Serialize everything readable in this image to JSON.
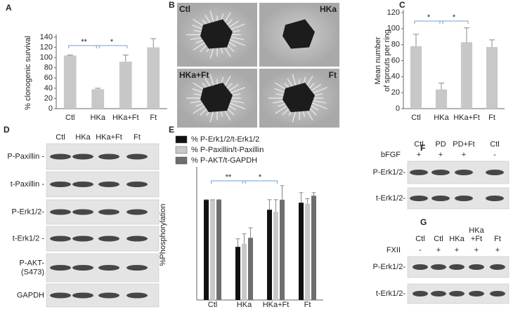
{
  "chart_data": [
    {
      "type": "bar",
      "panel_label": "A",
      "y_label": "% clonogenic survival",
      "categories": [
        "Ctl",
        "HKa",
        "HKa+Ft",
        "Ft"
      ],
      "values": [
        104,
        38,
        92,
        120
      ],
      "errors": [
        1,
        2,
        13,
        17
      ],
      "color": "#c8c8c8",
      "ylim": [
        0,
        140
      ],
      "yticks": [
        0,
        20,
        40,
        60,
        80,
        100,
        120,
        140
      ],
      "significance": [
        {
          "label": "**",
          "between": [
            "Ctl",
            "HKa"
          ]
        },
        {
          "label": "*",
          "between": [
            "HKa",
            "HKa+Ft"
          ]
        }
      ]
    },
    {
      "type": "bar",
      "panel_label": "C",
      "y_label_lines": [
        "Mean number",
        "of sprouts per ring"
      ],
      "categories": [
        "Ctl",
        "HKa",
        "HKa+Ft",
        "Ft"
      ],
      "values": [
        78,
        24,
        83,
        77
      ],
      "errors": [
        15,
        8,
        18,
        9
      ],
      "color": "#c8c8c8",
      "ylim": [
        0,
        120
      ],
      "yticks": [
        0,
        20,
        40,
        60,
        80,
        100,
        120
      ],
      "significance": [
        {
          "label": "*",
          "between": [
            "Ctl",
            "HKa"
          ]
        },
        {
          "label": "*",
          "between": [
            "HKa",
            "HKa+Ft"
          ]
        }
      ]
    },
    {
      "type": "grouped_bar",
      "panel_label": "E",
      "y_label": "%Phosphorylation",
      "categories": [
        "Ctl",
        "HKa",
        "HKa+Ft",
        "Ft"
      ],
      "ylim": [
        0,
        130
      ],
      "series": [
        {
          "name": "% P-Erk1/2/t-Erk1/2",
          "color": "#111111",
          "values": [
            100,
            53,
            90,
            97
          ],
          "errors": [
            0,
            8,
            10,
            10
          ]
        },
        {
          "name": "% P-Paxillin/t-Paxillin",
          "color": "#c8c8c8",
          "values": [
            100,
            56,
            88,
            96
          ],
          "errors": [
            0,
            10,
            12,
            5
          ]
        },
        {
          "name": "% P-AKT/t-GAPDH",
          "color": "#6e6e6e",
          "values": [
            100,
            62,
            100,
            104
          ],
          "errors": [
            0,
            10,
            14,
            3
          ]
        }
      ],
      "significance": [
        {
          "label": "**",
          "between": [
            "Ctl",
            "HKa"
          ]
        },
        {
          "label": "*",
          "between": [
            "HKa",
            "HKa+Ft"
          ]
        }
      ]
    }
  ],
  "micrographs": {
    "panel_label": "B",
    "labels": [
      "Ctl",
      "HKa",
      "HKa+Ft",
      "Ft"
    ]
  },
  "blot_D": {
    "panel_label": "D",
    "lanes": [
      [
        "Ctl"
      ],
      [
        "HKa"
      ],
      [
        "HKa+Ft"
      ],
      [
        "Ft"
      ]
    ],
    "rows": [
      [
        "P-Paxillin -"
      ],
      [
        "t-Paxillin -"
      ],
      [
        "P-Erk1/2-"
      ],
      [
        "t-Erk1/2 -"
      ],
      [
        "P-AKT-",
        "(S473)"
      ],
      [
        "GAPDH"
      ]
    ]
  },
  "blot_F": {
    "panel_label": "F",
    "lanes": [
      [
        "Ctl"
      ],
      [
        "PD"
      ],
      [
        "PD+Ft"
      ],
      [
        "Ctl"
      ]
    ],
    "treatment_label": "bFGF",
    "treatment": [
      "+",
      "+",
      "+",
      "-"
    ],
    "rows": [
      [
        "P-Erk1/2-"
      ],
      [
        "t-Erk1/2-"
      ]
    ]
  },
  "blot_G": {
    "panel_label": "G",
    "lanes": [
      [
        "Ctl"
      ],
      [
        "Ctl"
      ],
      [
        "HKa"
      ],
      [
        "HKa",
        "+Ft"
      ],
      [
        "Ft"
      ]
    ],
    "treatment_label": "FXII",
    "treatment": [
      "-",
      "+",
      "+",
      "+",
      "+"
    ],
    "rows": [
      [
        "P-Erk1/2-"
      ],
      [
        "t-Erk1/2-"
      ]
    ]
  }
}
